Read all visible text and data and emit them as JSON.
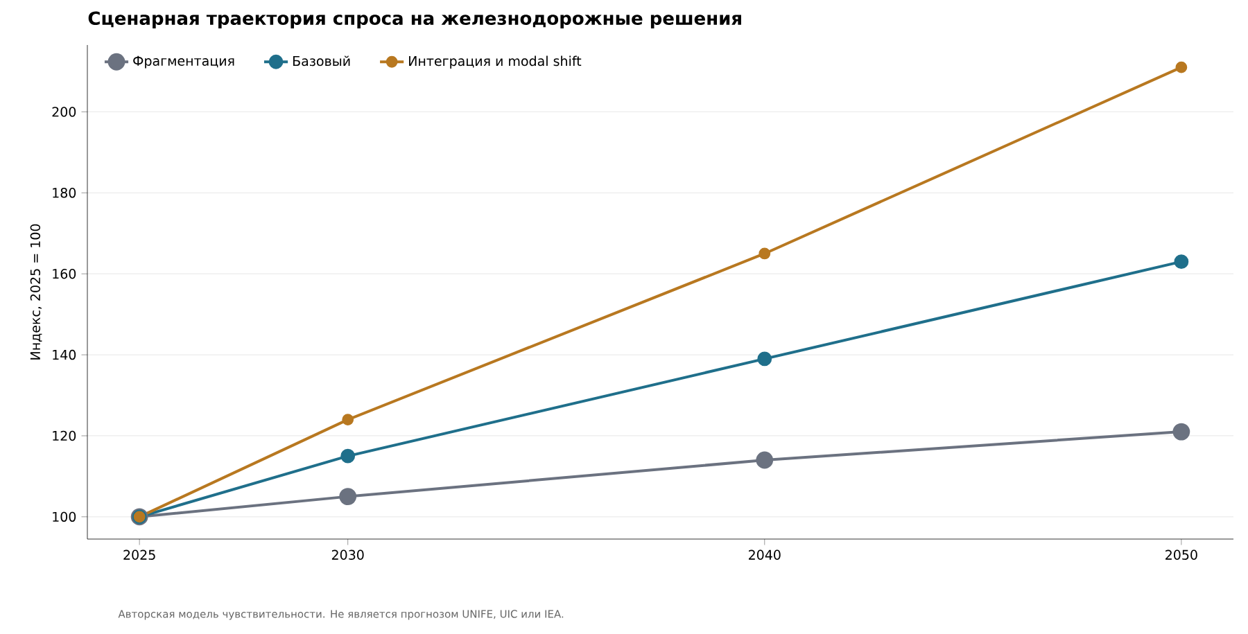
{
  "chart_data": {
    "type": "line",
    "title": "Сценарная траектория спроса на железнодорожные решения",
    "ylabel": "Индекс, 2025 = 100",
    "x": [
      2025,
      2030,
      2040,
      2050
    ],
    "series": [
      {
        "name": "Фрагментация",
        "color": "#6b7280",
        "values": [
          100,
          105,
          114,
          121
        ]
      },
      {
        "name": "Базовый",
        "color": "#1f6f8b",
        "values": [
          100,
          115,
          139,
          163
        ]
      },
      {
        "name": "Интеграция и modal shift",
        "color": "#b87820",
        "values": [
          100,
          124,
          165,
          211
        ]
      }
    ],
    "xlim": [
      2023.75,
      2051.25
    ],
    "ylim": [
      94.5,
      216.5
    ],
    "xticks": [
      2025,
      2030,
      2040,
      2050
    ],
    "yticks": [
      100,
      120,
      140,
      160,
      180,
      200
    ],
    "grid": "y",
    "legend": "top left",
    "marker": "circle",
    "line_style": "solid",
    "annotations": [
      "Авторская модель чувствительности. Не является прогнозом UNIFE, UIC или IEA."
    ]
  }
}
